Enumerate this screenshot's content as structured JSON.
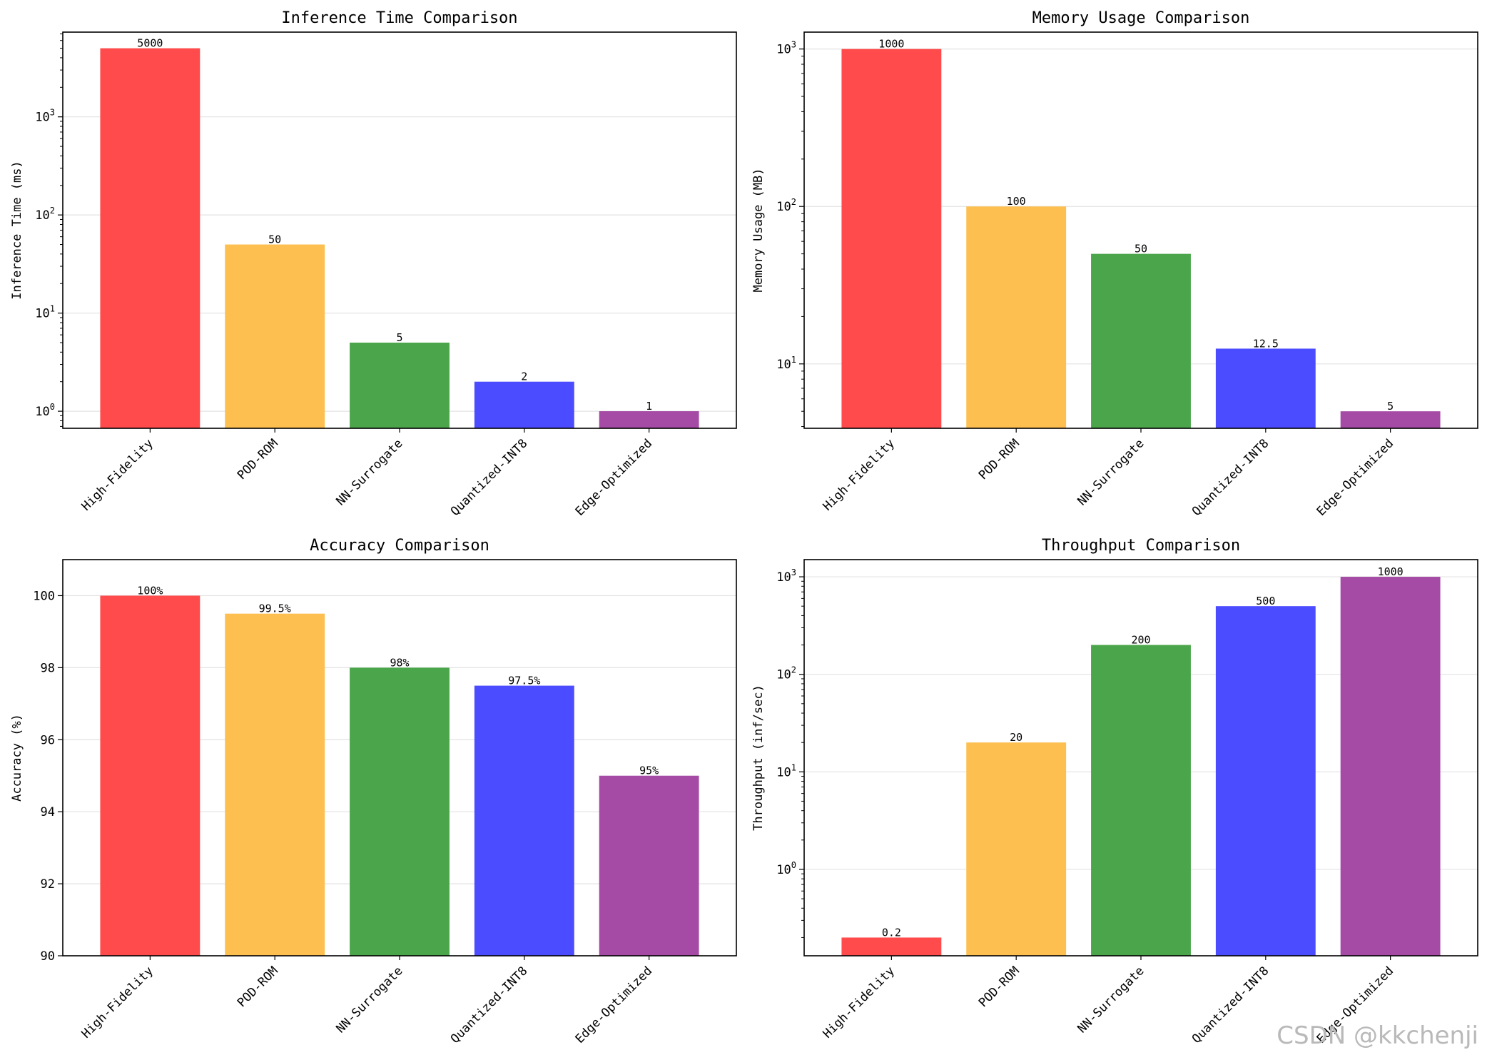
{
  "watermark": "CSDN @kkchenji",
  "categories": [
    "High-Fidelity",
    "POD-ROM",
    "NN-Surrogate",
    "Quantized-INT8",
    "Edge-Optimized"
  ],
  "colors": [
    "#ff4b4b",
    "#fdbf4f",
    "#4ba64b",
    "#4b4bff",
    "#a54ba5"
  ],
  "chart_data": [
    {
      "type": "bar",
      "title": "Inference Time Comparison",
      "ylabel": "Inference Time (ms)",
      "yscale": "log",
      "ylim": [
        0.67,
        7300
      ],
      "yticks": [
        1,
        10,
        100,
        1000
      ],
      "ytick_labels": [
        [
          "10",
          "0"
        ],
        [
          "10",
          "1"
        ],
        [
          "10",
          "2"
        ],
        [
          "10",
          "3"
        ]
      ],
      "categories": [
        "High-Fidelity",
        "POD-ROM",
        "NN-Surrogate",
        "Quantized-INT8",
        "Edge-Optimized"
      ],
      "values": [
        5000,
        50,
        5,
        2,
        1
      ],
      "data_labels": [
        "5000",
        "50",
        "5",
        "2",
        "1"
      ],
      "grid": true
    },
    {
      "type": "bar",
      "title": "Memory Usage Comparison",
      "ylabel": "Memory Usage (MB)",
      "yscale": "log",
      "ylim": [
        3.9,
        1280
      ],
      "yticks": [
        10,
        100,
        1000
      ],
      "ytick_labels": [
        [
          "10",
          "1"
        ],
        [
          "10",
          "2"
        ],
        [
          "10",
          "3"
        ]
      ],
      "categories": [
        "High-Fidelity",
        "POD-ROM",
        "NN-Surrogate",
        "Quantized-INT8",
        "Edge-Optimized"
      ],
      "values": [
        1000,
        100,
        50,
        12.5,
        5
      ],
      "data_labels": [
        "1000",
        "100",
        "50",
        "12.5",
        "5"
      ],
      "grid": true
    },
    {
      "type": "bar",
      "title": "Accuracy Comparison",
      "ylabel": "Accuracy (%)",
      "yscale": "linear",
      "ylim": [
        90,
        101
      ],
      "yticks": [
        90,
        92,
        94,
        96,
        98,
        100
      ],
      "ytick_labels": [
        [
          "90",
          ""
        ],
        [
          "92",
          ""
        ],
        [
          "94",
          ""
        ],
        [
          "96",
          ""
        ],
        [
          "98",
          ""
        ],
        [
          "100",
          ""
        ]
      ],
      "categories": [
        "High-Fidelity",
        "POD-ROM",
        "NN-Surrogate",
        "Quantized-INT8",
        "Edge-Optimized"
      ],
      "values": [
        100,
        99.5,
        98,
        97.5,
        95
      ],
      "data_labels": [
        "100%",
        "99.5%",
        "98%",
        "97.5%",
        "95%"
      ],
      "grid": true
    },
    {
      "type": "bar",
      "title": "Throughput Comparison",
      "ylabel": "Throughput (inf/sec)",
      "yscale": "log",
      "ylim": [
        0.13,
        1500
      ],
      "yticks": [
        1,
        10,
        100,
        1000
      ],
      "ytick_labels": [
        [
          "10",
          "0"
        ],
        [
          "10",
          "1"
        ],
        [
          "10",
          "2"
        ],
        [
          "10",
          "3"
        ]
      ],
      "categories": [
        "High-Fidelity",
        "POD-ROM",
        "NN-Surrogate",
        "Quantized-INT8",
        "Edge-Optimized"
      ],
      "values": [
        0.2,
        20,
        200,
        500,
        1000
      ],
      "data_labels": [
        "0.2",
        "20",
        "200",
        "500",
        "1000"
      ],
      "grid": true
    }
  ]
}
